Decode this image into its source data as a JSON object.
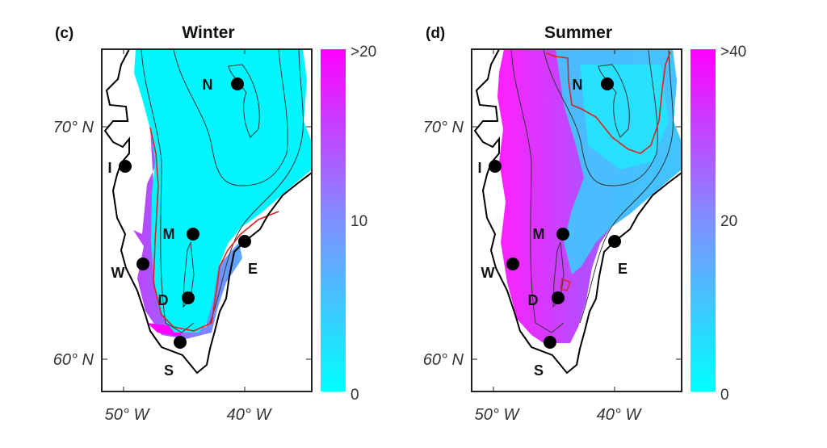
{
  "panels": [
    {
      "tag": "(c)",
      "title": "Winter",
      "colorbar": {
        "max_label": ">20",
        "mid_label": "10",
        "min_label": "0",
        "range": [
          0,
          20
        ],
        "low_color": "#00ffff",
        "high_color": "#ff00ff"
      },
      "lat_labels": [
        "70° N",
        "60° N"
      ],
      "lon_labels": [
        "50° W",
        "40° W"
      ],
      "stations": [
        "N",
        "I",
        "M",
        "E",
        "W",
        "D",
        "S"
      ]
    },
    {
      "tag": "(d)",
      "title": "Summer",
      "colorbar": {
        "max_label": ">40",
        "mid_label": "20",
        "min_label": "0",
        "range": [
          0,
          40
        ],
        "low_color": "#00ffff",
        "high_color": "#ff00ff"
      },
      "lat_labels": [
        "70° N",
        "60° N"
      ],
      "lon_labels": [
        "50° W",
        "40° W"
      ],
      "stations": [
        "N",
        "I",
        "M",
        "E",
        "W",
        "D",
        "S"
      ]
    }
  ],
  "colors": {
    "contour_red": "#e02020",
    "coast": "#000000"
  }
}
